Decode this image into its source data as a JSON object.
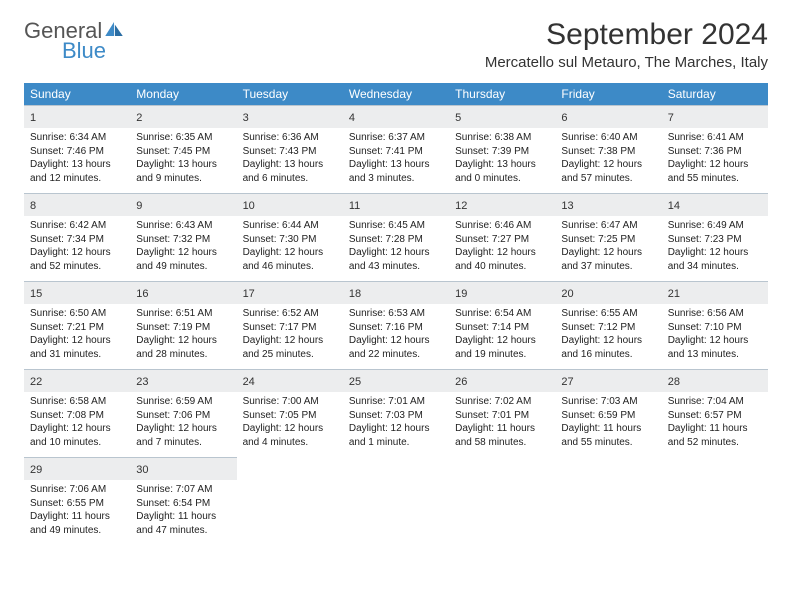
{
  "brand": {
    "word1": "General",
    "word2": "Blue"
  },
  "title": "September 2024",
  "location": "Mercatello sul Metauro, The Marches, Italy",
  "colors": {
    "header_bg": "#3d8ac7",
    "daynum_bg": "#ecedee",
    "daynum_border": "#b9c5cf",
    "text": "#222222",
    "brand_gray": "#555555",
    "brand_blue": "#3d8ac7"
  },
  "day_names": [
    "Sunday",
    "Monday",
    "Tuesday",
    "Wednesday",
    "Thursday",
    "Friday",
    "Saturday"
  ],
  "weeks": [
    [
      {
        "n": "1",
        "sr": "6:34 AM",
        "ss": "7:46 PM",
        "dl": "13 hours and 12 minutes."
      },
      {
        "n": "2",
        "sr": "6:35 AM",
        "ss": "7:45 PM",
        "dl": "13 hours and 9 minutes."
      },
      {
        "n": "3",
        "sr": "6:36 AM",
        "ss": "7:43 PM",
        "dl": "13 hours and 6 minutes."
      },
      {
        "n": "4",
        "sr": "6:37 AM",
        "ss": "7:41 PM",
        "dl": "13 hours and 3 minutes."
      },
      {
        "n": "5",
        "sr": "6:38 AM",
        "ss": "7:39 PM",
        "dl": "13 hours and 0 minutes."
      },
      {
        "n": "6",
        "sr": "6:40 AM",
        "ss": "7:38 PM",
        "dl": "12 hours and 57 minutes."
      },
      {
        "n": "7",
        "sr": "6:41 AM",
        "ss": "7:36 PM",
        "dl": "12 hours and 55 minutes."
      }
    ],
    [
      {
        "n": "8",
        "sr": "6:42 AM",
        "ss": "7:34 PM",
        "dl": "12 hours and 52 minutes."
      },
      {
        "n": "9",
        "sr": "6:43 AM",
        "ss": "7:32 PM",
        "dl": "12 hours and 49 minutes."
      },
      {
        "n": "10",
        "sr": "6:44 AM",
        "ss": "7:30 PM",
        "dl": "12 hours and 46 minutes."
      },
      {
        "n": "11",
        "sr": "6:45 AM",
        "ss": "7:28 PM",
        "dl": "12 hours and 43 minutes."
      },
      {
        "n": "12",
        "sr": "6:46 AM",
        "ss": "7:27 PM",
        "dl": "12 hours and 40 minutes."
      },
      {
        "n": "13",
        "sr": "6:47 AM",
        "ss": "7:25 PM",
        "dl": "12 hours and 37 minutes."
      },
      {
        "n": "14",
        "sr": "6:49 AM",
        "ss": "7:23 PM",
        "dl": "12 hours and 34 minutes."
      }
    ],
    [
      {
        "n": "15",
        "sr": "6:50 AM",
        "ss": "7:21 PM",
        "dl": "12 hours and 31 minutes."
      },
      {
        "n": "16",
        "sr": "6:51 AM",
        "ss": "7:19 PM",
        "dl": "12 hours and 28 minutes."
      },
      {
        "n": "17",
        "sr": "6:52 AM",
        "ss": "7:17 PM",
        "dl": "12 hours and 25 minutes."
      },
      {
        "n": "18",
        "sr": "6:53 AM",
        "ss": "7:16 PM",
        "dl": "12 hours and 22 minutes."
      },
      {
        "n": "19",
        "sr": "6:54 AM",
        "ss": "7:14 PM",
        "dl": "12 hours and 19 minutes."
      },
      {
        "n": "20",
        "sr": "6:55 AM",
        "ss": "7:12 PM",
        "dl": "12 hours and 16 minutes."
      },
      {
        "n": "21",
        "sr": "6:56 AM",
        "ss": "7:10 PM",
        "dl": "12 hours and 13 minutes."
      }
    ],
    [
      {
        "n": "22",
        "sr": "6:58 AM",
        "ss": "7:08 PM",
        "dl": "12 hours and 10 minutes."
      },
      {
        "n": "23",
        "sr": "6:59 AM",
        "ss": "7:06 PM",
        "dl": "12 hours and 7 minutes."
      },
      {
        "n": "24",
        "sr": "7:00 AM",
        "ss": "7:05 PM",
        "dl": "12 hours and 4 minutes."
      },
      {
        "n": "25",
        "sr": "7:01 AM",
        "ss": "7:03 PM",
        "dl": "12 hours and 1 minute."
      },
      {
        "n": "26",
        "sr": "7:02 AM",
        "ss": "7:01 PM",
        "dl": "11 hours and 58 minutes."
      },
      {
        "n": "27",
        "sr": "7:03 AM",
        "ss": "6:59 PM",
        "dl": "11 hours and 55 minutes."
      },
      {
        "n": "28",
        "sr": "7:04 AM",
        "ss": "6:57 PM",
        "dl": "11 hours and 52 minutes."
      }
    ],
    [
      {
        "n": "29",
        "sr": "7:06 AM",
        "ss": "6:55 PM",
        "dl": "11 hours and 49 minutes."
      },
      {
        "n": "30",
        "sr": "7:07 AM",
        "ss": "6:54 PM",
        "dl": "11 hours and 47 minutes."
      },
      null,
      null,
      null,
      null,
      null
    ]
  ],
  "labels": {
    "sunrise": "Sunrise: ",
    "sunset": "Sunset: ",
    "daylight": "Daylight: "
  }
}
